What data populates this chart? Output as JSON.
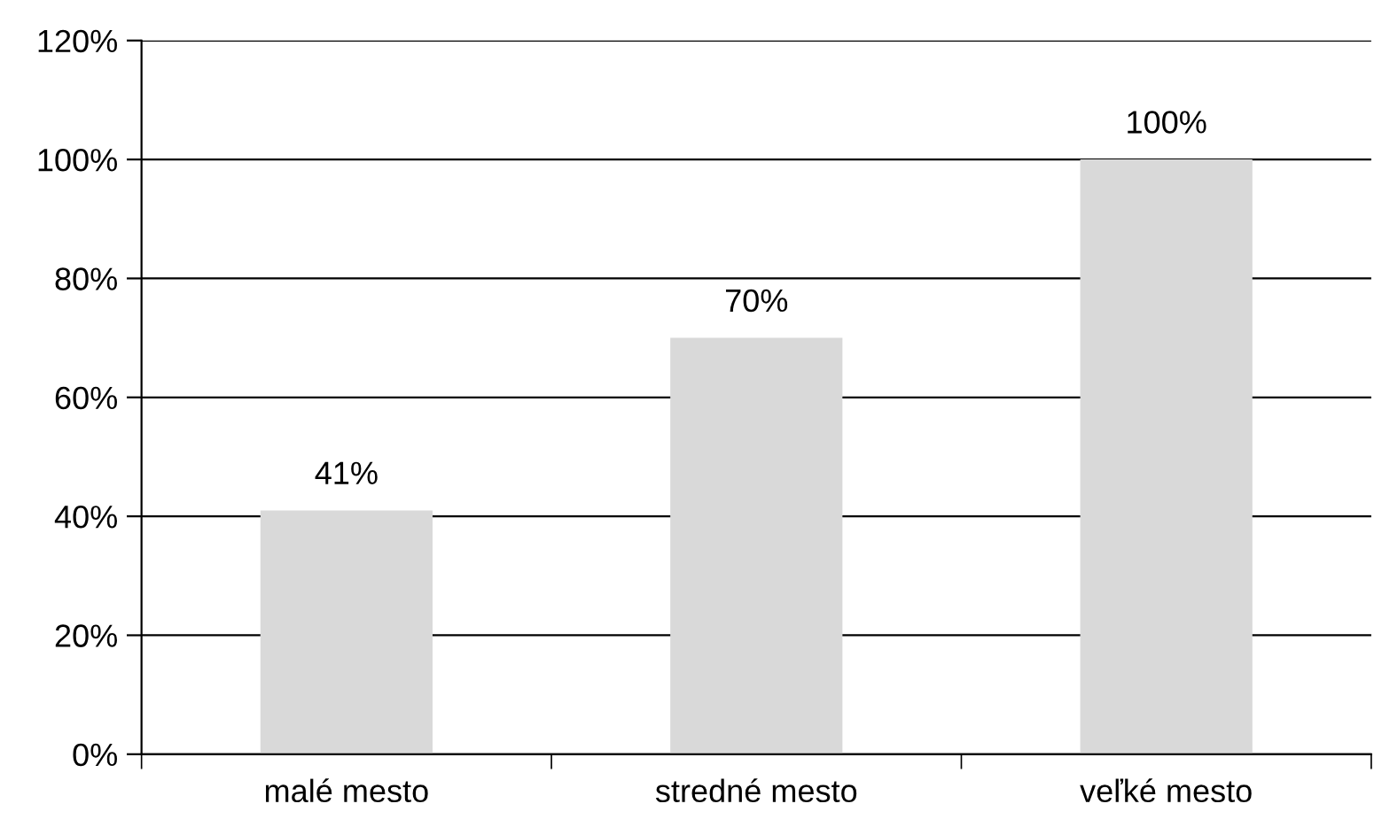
{
  "chart_data": {
    "type": "bar",
    "categories": [
      "malé mesto",
      "stredné mesto",
      "veľké mesto"
    ],
    "values": [
      41,
      70,
      100
    ],
    "color": "#d9d9d9",
    "value_labels": [
      "41%",
      "70%",
      "100%"
    ],
    "ylim": [
      0,
      120
    ],
    "yticks": [
      {
        "value": 0,
        "label": "0%"
      },
      {
        "value": 20,
        "label": "20%"
      },
      {
        "value": 40,
        "label": "40%"
      },
      {
        "value": 60,
        "label": "60%"
      },
      {
        "value": 80,
        "label": "80%"
      },
      {
        "value": 100,
        "label": "100%"
      },
      {
        "value": 120,
        "label": "120%"
      }
    ],
    "grid": "y"
  }
}
